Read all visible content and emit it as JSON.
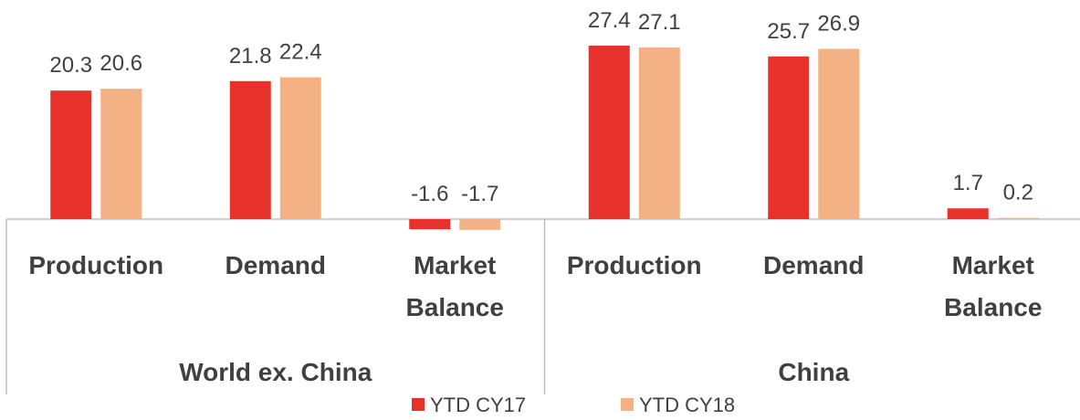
{
  "chart_data": {
    "type": "bar",
    "categories": [
      "Production",
      "Demand",
      "Market Balance",
      "Production",
      "Demand",
      "Market Balance"
    ],
    "groups": [
      {
        "name": "World ex. China",
        "size": 3
      },
      {
        "name": "China",
        "size": 3
      }
    ],
    "series": [
      {
        "name": "YTD CY17",
        "color": "#e8312a",
        "values": [
          20.3,
          21.8,
          -1.6,
          27.4,
          25.7,
          1.7
        ]
      },
      {
        "name": "YTD CY18",
        "color": "#f4b183",
        "values": [
          20.6,
          22.4,
          -1.7,
          27.1,
          26.9,
          0.2
        ]
      }
    ],
    "legend": "bottom"
  }
}
